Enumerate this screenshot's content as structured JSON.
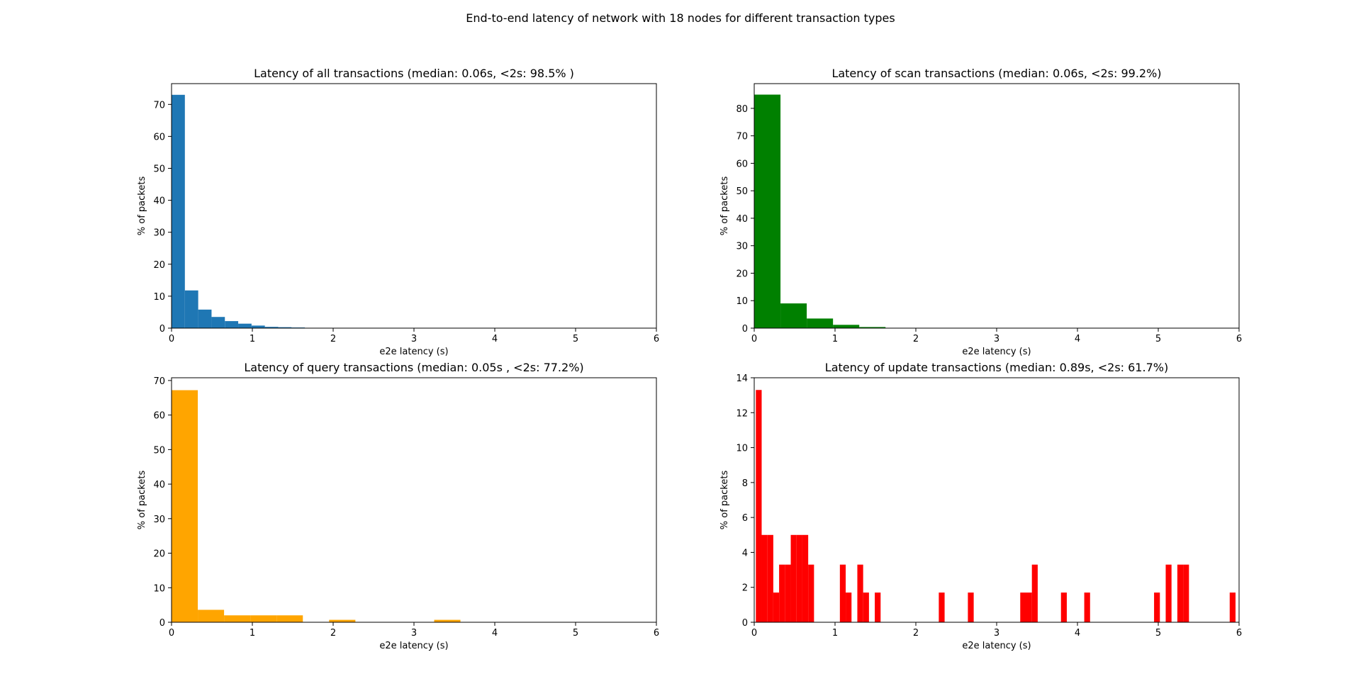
{
  "figure": {
    "suptitle": "End-to-end latency of network with 18 nodes for different transaction types"
  },
  "chart_data": [
    {
      "type": "bar",
      "title": "Latency of all transactions (median: 0.06s, <2s: 98.5% )",
      "xlabel": "e2e latency (s)",
      "ylabel": "% of packets",
      "xlim": [
        0,
        6
      ],
      "ylim": [
        0,
        76.5
      ],
      "xticks": [
        0,
        1,
        2,
        3,
        4,
        5,
        6
      ],
      "yticks": [
        0,
        10,
        20,
        30,
        40,
        50,
        60,
        70
      ],
      "color": "#1f77b4",
      "bin_width": 0.165,
      "bins": [
        0,
        0.165,
        0.33,
        0.495,
        0.66,
        0.825,
        0.99,
        1.155,
        1.32,
        1.485,
        1.65,
        1.815
      ],
      "values": [
        73.0,
        11.8,
        5.8,
        3.5,
        2.2,
        1.4,
        0.8,
        0.4,
        0.3,
        0.2,
        0.1,
        0.05
      ]
    },
    {
      "type": "bar",
      "title": "Latency of scan transactions (median: 0.06s, <2s: 99.2%)",
      "xlabel": "e2e latency (s)",
      "ylabel": "% of packets",
      "xlim": [
        0,
        6
      ],
      "ylim": [
        0,
        89
      ],
      "xticks": [
        0,
        1,
        2,
        3,
        4,
        5,
        6
      ],
      "yticks": [
        0,
        10,
        20,
        30,
        40,
        50,
        60,
        70,
        80
      ],
      "color": "#008000",
      "bin_width": 0.325,
      "bins": [
        0,
        0.325,
        0.65,
        0.975,
        1.3
      ],
      "values": [
        85.0,
        9.0,
        3.5,
        1.2,
        0.4
      ]
    },
    {
      "type": "bar",
      "title": "Latency of query transactions (median: 0.05s , <2s: 77.2%)",
      "xlabel": "e2e latency (s)",
      "ylabel": "% of packets",
      "xlim": [
        0,
        6
      ],
      "ylim": [
        0,
        70.8
      ],
      "xticks": [
        0,
        1,
        2,
        3,
        4,
        5,
        6
      ],
      "yticks": [
        0,
        10,
        20,
        30,
        40,
        50,
        60,
        70
      ],
      "color": "#ffa500",
      "bin_width": 0.325,
      "bins": [
        0,
        0.325,
        0.65,
        0.975,
        1.3,
        1.95,
        3.25
      ],
      "values": [
        67.2,
        3.6,
        2.0,
        2.0,
        2.0,
        0.7,
        0.7
      ]
    },
    {
      "type": "bar",
      "title": "Latency of update transactions (median: 0.89s, <2s: 61.7%)",
      "xlabel": "e2e latency (s)",
      "ylabel": "% of packets",
      "xlim": [
        0,
        6
      ],
      "ylim": [
        0,
        14
      ],
      "xticks": [
        0,
        1,
        2,
        3,
        4,
        5,
        6
      ],
      "yticks": [
        0,
        2,
        4,
        6,
        8,
        10,
        12,
        14
      ],
      "color": "#ff0000",
      "bin_width": 0.072,
      "bins": [
        0.02,
        0.092,
        0.164,
        0.236,
        0.308,
        0.38,
        0.452,
        0.524,
        0.596,
        0.668,
        1.06,
        1.132,
        1.276,
        1.348,
        1.492,
        2.284,
        2.644,
        3.292,
        3.364,
        3.436,
        3.796,
        4.084,
        4.948,
        5.092,
        5.236,
        5.308,
        5.884
      ],
      "values": [
        13.3,
        5.0,
        5.0,
        1.7,
        3.3,
        3.3,
        5.0,
        5.0,
        5.0,
        3.3,
        3.3,
        1.7,
        3.3,
        1.7,
        1.7,
        1.7,
        1.7,
        1.7,
        1.7,
        3.3,
        1.7,
        1.7,
        1.7,
        3.3,
        3.3,
        3.3,
        1.7
      ]
    }
  ]
}
